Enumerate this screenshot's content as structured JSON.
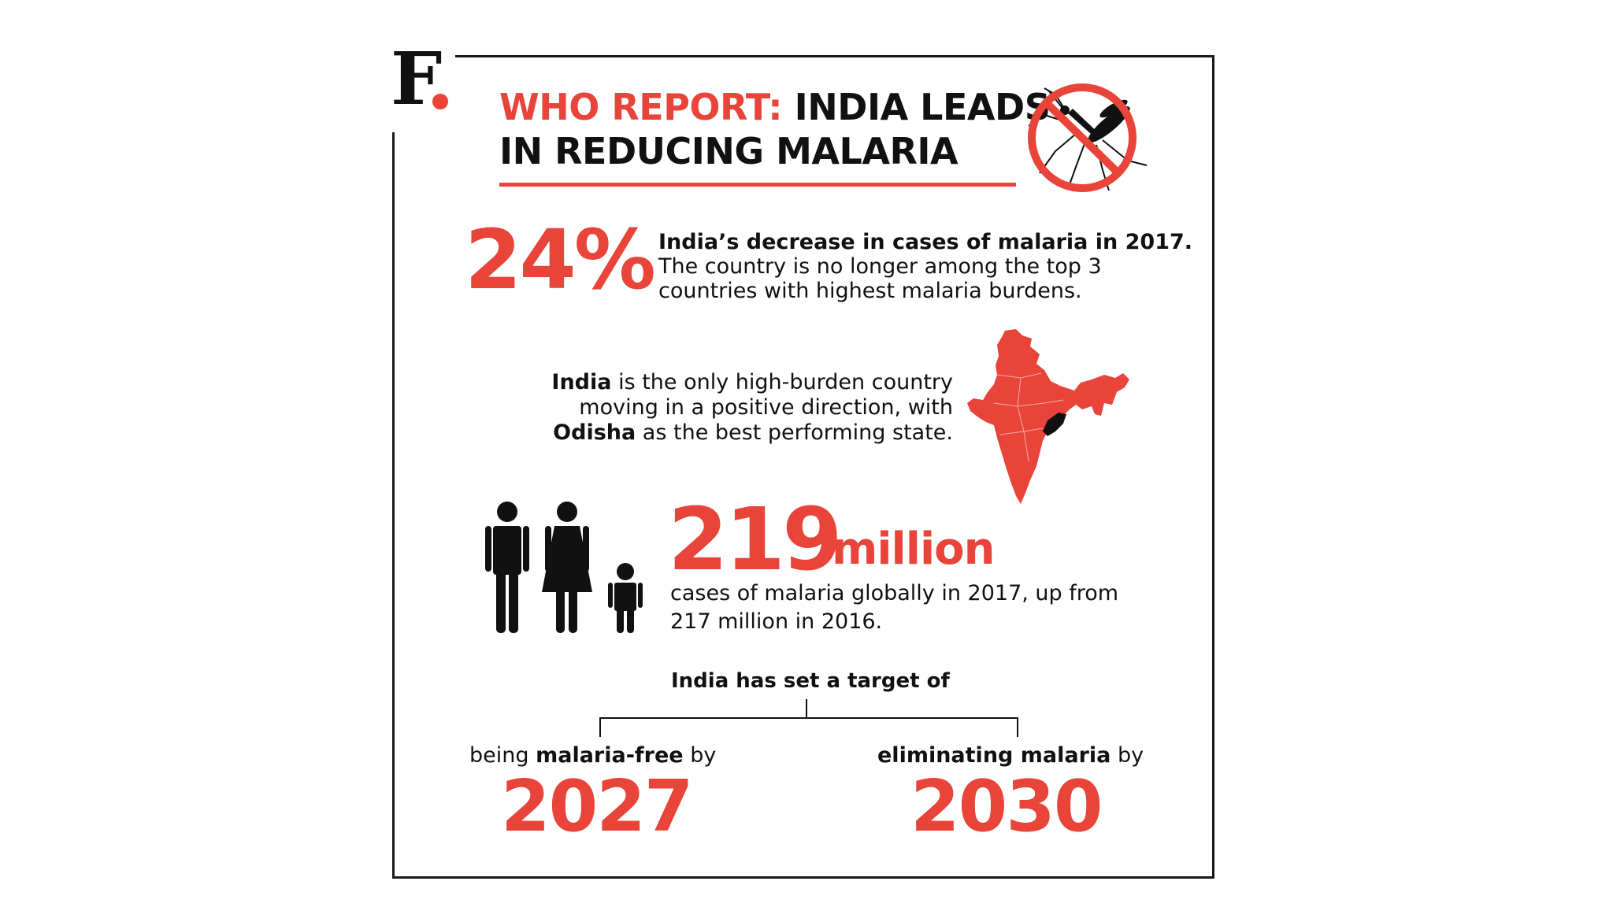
{
  "logo": {
    "letter": "F"
  },
  "header": {
    "title_red": "WHO REPORT:",
    "title_black_1": " INDIA LEADS",
    "title_black_2": "IN REDUCING MALARIA",
    "icon": "no-mosquito-icon"
  },
  "stat_decrease": {
    "value": "24%",
    "line1": "India’s decrease in cases of malaria in 2017.",
    "line2": "The country is no longer among the top 3",
    "line3": "countries with highest malaria burdens."
  },
  "india_note": {
    "india": "India",
    "rest1": " is the only high-burden country",
    "line2": "moving in a positive direction, with",
    "odisha": "Odisha",
    "rest3": " as the best performing state.",
    "icon": "india-map-icon"
  },
  "stat_global": {
    "value": "219",
    "unit": "million",
    "line1": "cases of malaria globally in 2017, up from",
    "line2": "217 million in 2016.",
    "icon": "family-icon"
  },
  "targets": {
    "heading": "India has set a target of",
    "left": {
      "pre": "being ",
      "bold": "malaria-free",
      "post": " by",
      "year": "2027"
    },
    "right": {
      "bold": "eliminating malaria",
      "post": " by",
      "year": "2030"
    }
  },
  "colors": {
    "accent": "#e8443a",
    "text": "#111111"
  }
}
